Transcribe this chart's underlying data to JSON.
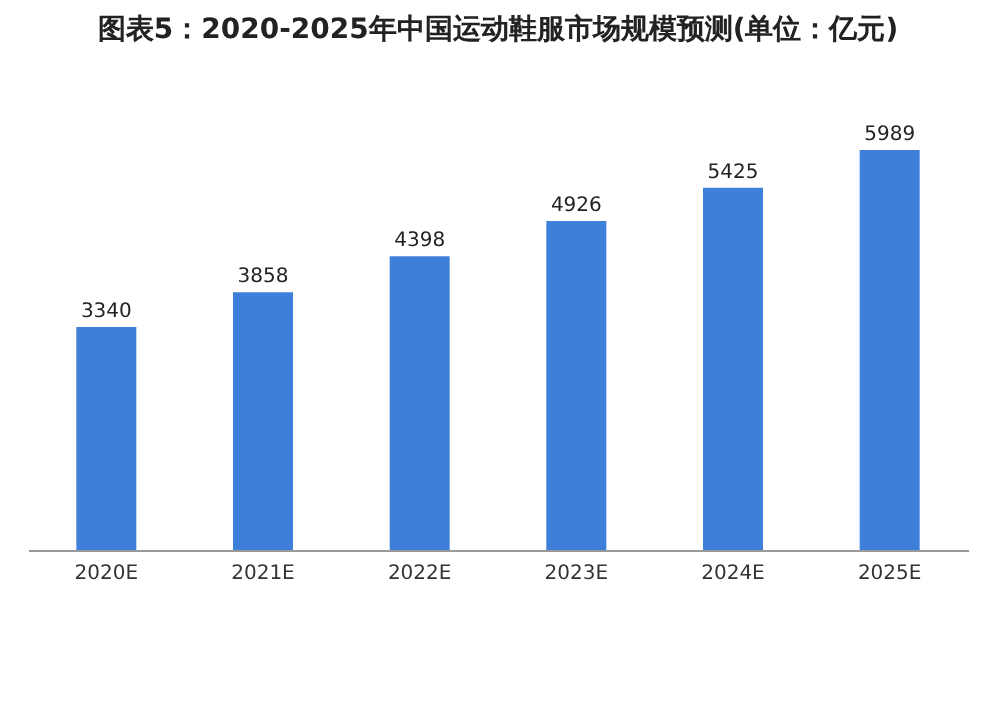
{
  "chart_data": {
    "type": "bar",
    "title": "图表5：2020-2025年中国运动鞋服市场规模预测(单位：亿元)",
    "categories": [
      "2020E",
      "2021E",
      "2022E",
      "2023E",
      "2024E",
      "2025E"
    ],
    "values": [
      3340,
      3858,
      4398,
      4926,
      5425,
      5989
    ],
    "color": "#3d7fd9",
    "data_labels": true
  }
}
